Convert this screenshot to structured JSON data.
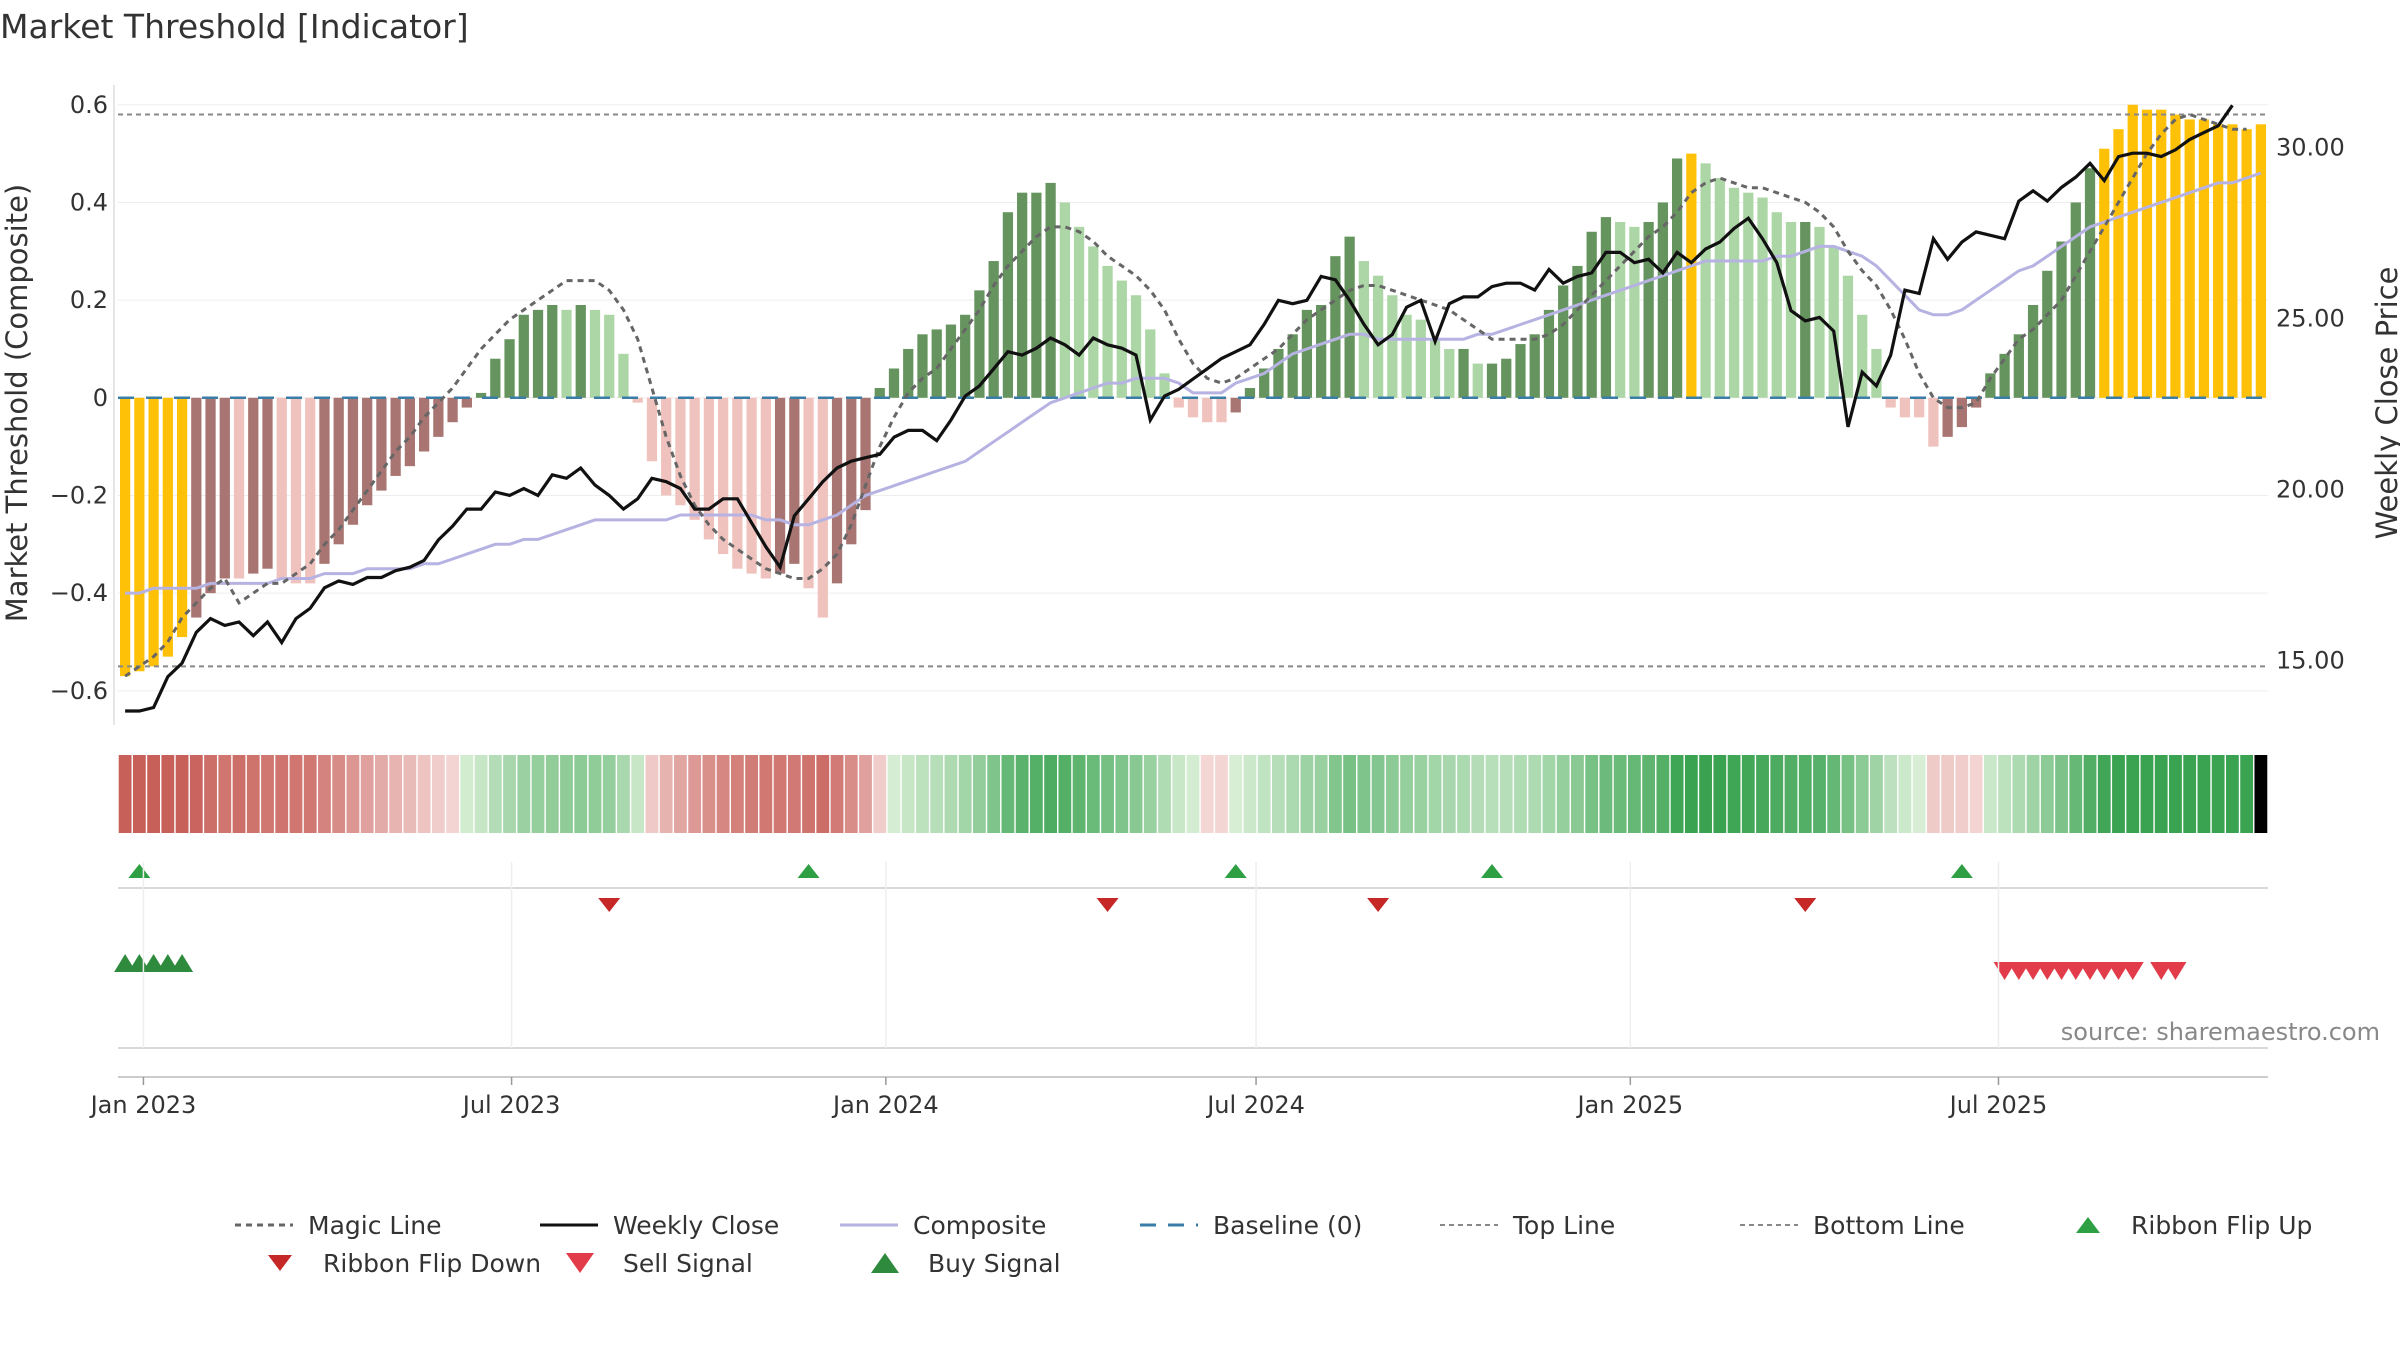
{
  "chart_data": {
    "title": "Market Threshold [Indicator]",
    "type": "bar",
    "x_start": "2022-12-23",
    "x_step_days": 7,
    "x_ticks": [
      "Jan 2023",
      "Jul 2023",
      "Jan 2024",
      "Jul 2024",
      "Jan 2025",
      "Jul 2025"
    ],
    "left_axis": {
      "label": "Market Threshold (Composite)",
      "ylim": [
        -0.67,
        0.62
      ],
      "ticks": [
        0.6,
        0.4,
        0.2,
        0,
        -0.2,
        -0.4,
        -0.6
      ],
      "tick_labels": [
        "0.6",
        "0.4",
        "0.2",
        "0",
        "−0.2",
        "−0.4",
        "−0.6"
      ]
    },
    "right_axis": {
      "label": "Weekly Close Price",
      "ylim": [
        13.09,
        31.5
      ],
      "ticks": [
        30,
        25,
        20,
        15
      ],
      "tick_labels": [
        "30.00",
        "25.00",
        "20.00",
        "15.00"
      ]
    },
    "reference_lines": {
      "top": 0.58,
      "bottom": -0.55,
      "baseline": 0
    },
    "composite_bars": [
      -0.57,
      -0.56,
      -0.55,
      -0.53,
      -0.49,
      -0.45,
      -0.4,
      -0.37,
      -0.37,
      -0.36,
      -0.35,
      -0.37,
      -0.38,
      -0.38,
      -0.34,
      -0.3,
      -0.26,
      -0.22,
      -0.19,
      -0.16,
      -0.14,
      -0.11,
      -0.08,
      -0.05,
      -0.02,
      0.01,
      0.08,
      0.12,
      0.17,
      0.18,
      0.19,
      0.18,
      0.19,
      0.18,
      0.17,
      0.09,
      -0.01,
      -0.13,
      -0.2,
      -0.22,
      -0.25,
      -0.29,
      -0.32,
      -0.35,
      -0.36,
      -0.37,
      -0.36,
      -0.34,
      -0.39,
      -0.45,
      -0.38,
      -0.3,
      -0.23,
      0.02,
      0.06,
      0.1,
      0.13,
      0.14,
      0.15,
      0.17,
      0.22,
      0.28,
      0.38,
      0.42,
      0.42,
      0.44,
      0.4,
      0.35,
      0.31,
      0.27,
      0.24,
      0.21,
      0.14,
      0.05,
      -0.02,
      -0.04,
      -0.05,
      -0.05,
      -0.03,
      0.02,
      0.06,
      0.1,
      0.13,
      0.18,
      0.19,
      0.29,
      0.33,
      0.28,
      0.25,
      0.21,
      0.17,
      0.16,
      0.12,
      0.1,
      0.1,
      0.07,
      0.07,
      0.08,
      0.11,
      0.13,
      0.18,
      0.23,
      0.27,
      0.34,
      0.37,
      0.36,
      0.35,
      0.36,
      0.4,
      0.49,
      0.5,
      0.48,
      0.45,
      0.43,
      0.42,
      0.41,
      0.38,
      0.36,
      0.36,
      0.35,
      0.31,
      0.25,
      0.17,
      0.1,
      -0.02,
      -0.04,
      -0.04,
      -0.1,
      -0.08,
      -0.06,
      -0.02,
      0.05,
      0.09,
      0.13,
      0.19,
      0.26,
      0.32,
      0.4,
      0.47,
      0.51,
      0.55,
      0.6,
      0.59,
      0.59,
      0.58,
      0.57,
      0.57,
      0.56,
      0.56,
      0.55,
      0.56
    ],
    "weekly_close": [
      13.5,
      13.5,
      13.6,
      14.5,
      14.9,
      15.8,
      16.2,
      16.0,
      16.1,
      15.7,
      16.1,
      15.5,
      16.2,
      16.5,
      17.1,
      17.3,
      17.2,
      17.4,
      17.4,
      17.6,
      17.7,
      17.9,
      18.5,
      18.9,
      19.4,
      19.4,
      19.9,
      19.8,
      20.0,
      19.8,
      20.4,
      20.3,
      20.6,
      20.1,
      19.8,
      19.4,
      19.7,
      20.3,
      20.2,
      20.0,
      19.4,
      19.4,
      19.7,
      19.7,
      19.0,
      18.3,
      17.7,
      19.2,
      19.7,
      20.2,
      20.6,
      20.8,
      20.9,
      21.0,
      21.5,
      21.7,
      21.7,
      21.4,
      22.0,
      22.7,
      23.0,
      23.5,
      24.0,
      23.9,
      24.1,
      24.4,
      24.2,
      23.9,
      24.4,
      24.2,
      24.1,
      23.9,
      22.0,
      22.7,
      22.9,
      23.2,
      23.5,
      23.8,
      24.0,
      24.2,
      24.8,
      25.5,
      25.4,
      25.5,
      26.2,
      26.1,
      25.5,
      24.8,
      24.2,
      24.5,
      25.3,
      25.5,
      24.3,
      25.4,
      25.6,
      25.6,
      25.9,
      26.0,
      26.0,
      25.8,
      26.4,
      26.0,
      26.2,
      26.3,
      26.9,
      26.9,
      26.6,
      26.7,
      26.3,
      26.9,
      26.6,
      27.0,
      27.2,
      27.6,
      27.9,
      27.3,
      26.6,
      25.2,
      24.9,
      25.0,
      24.6,
      21.8,
      23.4,
      23.0,
      23.9,
      25.8,
      25.7,
      27.3,
      26.7,
      27.2,
      27.5,
      27.4,
      27.3,
      28.4,
      28.7,
      28.4,
      28.8,
      29.1,
      29.5,
      29.0,
      29.7,
      29.8,
      29.8,
      29.7,
      29.9,
      30.2,
      30.4,
      30.6,
      31.2
    ],
    "composite_line": [
      -0.4,
      -0.4,
      -0.39,
      -0.39,
      -0.39,
      -0.39,
      -0.38,
      -0.38,
      -0.38,
      -0.38,
      -0.38,
      -0.37,
      -0.37,
      -0.37,
      -0.36,
      -0.36,
      -0.36,
      -0.35,
      -0.35,
      -0.35,
      -0.35,
      -0.34,
      -0.34,
      -0.33,
      -0.32,
      -0.31,
      -0.3,
      -0.3,
      -0.29,
      -0.29,
      -0.28,
      -0.27,
      -0.26,
      -0.25,
      -0.25,
      -0.25,
      -0.25,
      -0.25,
      -0.25,
      -0.24,
      -0.24,
      -0.24,
      -0.24,
      -0.24,
      -0.24,
      -0.25,
      -0.25,
      -0.26,
      -0.26,
      -0.25,
      -0.24,
      -0.22,
      -0.2,
      -0.19,
      -0.18,
      -0.17,
      -0.16,
      -0.15,
      -0.14,
      -0.13,
      -0.11,
      -0.09,
      -0.07,
      -0.05,
      -0.03,
      -0.01,
      0.0,
      0.01,
      0.02,
      0.03,
      0.03,
      0.04,
      0.04,
      0.04,
      0.03,
      0.01,
      0.01,
      0.01,
      0.03,
      0.04,
      0.05,
      0.07,
      0.09,
      0.1,
      0.11,
      0.12,
      0.13,
      0.13,
      0.12,
      0.12,
      0.12,
      0.12,
      0.12,
      0.12,
      0.12,
      0.13,
      0.13,
      0.14,
      0.15,
      0.16,
      0.17,
      0.18,
      0.19,
      0.2,
      0.21,
      0.22,
      0.23,
      0.24,
      0.25,
      0.26,
      0.27,
      0.28,
      0.28,
      0.28,
      0.28,
      0.28,
      0.29,
      0.29,
      0.3,
      0.31,
      0.31,
      0.3,
      0.29,
      0.27,
      0.24,
      0.21,
      0.18,
      0.17,
      0.17,
      0.18,
      0.2,
      0.22,
      0.24,
      0.26,
      0.27,
      0.29,
      0.31,
      0.33,
      0.35,
      0.36,
      0.37,
      0.38,
      0.39,
      0.4,
      0.41,
      0.42,
      0.43,
      0.44,
      0.44,
      0.45,
      0.46
    ],
    "magic_line": [
      -0.57,
      -0.55,
      -0.53,
      -0.5,
      -0.45,
      -0.42,
      -0.39,
      -0.37,
      -0.42,
      -0.4,
      -0.38,
      -0.38,
      -0.36,
      -0.34,
      -0.3,
      -0.27,
      -0.23,
      -0.19,
      -0.15,
      -0.11,
      -0.08,
      -0.04,
      -0.01,
      0.02,
      0.06,
      0.1,
      0.13,
      0.16,
      0.18,
      0.2,
      0.22,
      0.24,
      0.24,
      0.24,
      0.22,
      0.18,
      0.12,
      0.02,
      -0.08,
      -0.16,
      -0.22,
      -0.26,
      -0.29,
      -0.31,
      -0.33,
      -0.35,
      -0.36,
      -0.37,
      -0.37,
      -0.35,
      -0.32,
      -0.26,
      -0.18,
      -0.1,
      -0.04,
      0.01,
      0.04,
      0.06,
      0.1,
      0.14,
      0.18,
      0.23,
      0.27,
      0.3,
      0.33,
      0.35,
      0.35,
      0.34,
      0.32,
      0.29,
      0.27,
      0.25,
      0.22,
      0.18,
      0.12,
      0.07,
      0.04,
      0.03,
      0.04,
      0.06,
      0.08,
      0.1,
      0.13,
      0.16,
      0.18,
      0.2,
      0.22,
      0.23,
      0.23,
      0.22,
      0.21,
      0.2,
      0.19,
      0.18,
      0.16,
      0.14,
      0.12,
      0.12,
      0.12,
      0.12,
      0.13,
      0.15,
      0.18,
      0.21,
      0.24,
      0.27,
      0.3,
      0.33,
      0.35,
      0.38,
      0.42,
      0.44,
      0.45,
      0.44,
      0.43,
      0.43,
      0.42,
      0.41,
      0.4,
      0.38,
      0.35,
      0.3,
      0.26,
      0.23,
      0.18,
      0.12,
      0.05,
      0.0,
      -0.02,
      -0.02,
      -0.01,
      0.04,
      0.08,
      0.12,
      0.14,
      0.17,
      0.2,
      0.25,
      0.3,
      0.35,
      0.4,
      0.45,
      0.5,
      0.54,
      0.57,
      0.58,
      0.57,
      0.56,
      0.55,
      0.55
    ],
    "ribbon_flip_up_dates": [
      "2022-12-30",
      "2023-11-24",
      "2024-06-21",
      "2024-10-25",
      "2025-06-13"
    ],
    "ribbon_flip_down_dates": [
      "2023-08-18",
      "2024-04-19",
      "2024-08-30",
      "2025-03-28"
    ],
    "buy_signal_dates": [
      "2022-12-23",
      "2022-12-30",
      "2023-01-06",
      "2023-01-13",
      "2023-01-20"
    ],
    "sell_signal_dates": [
      "2025-07-04",
      "2025-07-11",
      "2025-07-18",
      "2025-07-25",
      "2025-08-01",
      "2025-08-08",
      "2025-08-15",
      "2025-08-22",
      "2025-08-29",
      "2025-09-05",
      "2025-09-19",
      "2025-09-26"
    ],
    "source_note": "source: sharemaestro.com",
    "legend": [
      {
        "key": "magic",
        "label": "Magic Line"
      },
      {
        "key": "close",
        "label": "Weekly Close"
      },
      {
        "key": "composite",
        "label": "Composite"
      },
      {
        "key": "baseline",
        "label": "Baseline (0)"
      },
      {
        "key": "top",
        "label": "Top Line"
      },
      {
        "key": "bottom",
        "label": "Bottom Line"
      },
      {
        "key": "flipup",
        "label": "Ribbon Flip Up"
      },
      {
        "key": "flipdown",
        "label": "Ribbon Flip Down"
      },
      {
        "key": "sell",
        "label": "Sell Signal"
      },
      {
        "key": "buy",
        "label": "Buy Signal"
      }
    ],
    "colors": {
      "extreme": "#ffc107",
      "pos_rising": "#66945f",
      "pos_falling": "#acd6a6",
      "neg_falling": "#f0c2bd",
      "neg_rising": "#a87572",
      "close": "#111111",
      "composite": "#b6b2e2",
      "magic": "#666666",
      "baseline": "#3a7ea8",
      "refline": "#888888",
      "flip_up": "#2ea043",
      "flip_down": "#c62828",
      "buy": "#2e8b3e",
      "sell": "#e23c4a"
    },
    "legend_placement": "bottom",
    "grid": true
  }
}
